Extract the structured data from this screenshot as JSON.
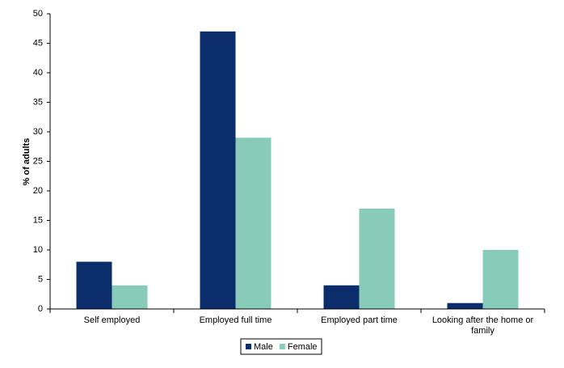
{
  "chart_data": {
    "type": "bar",
    "y_label": "% of adults",
    "categories": [
      "Self employed",
      "Employed full time",
      "Employed part time",
      "Looking after the home or family"
    ],
    "series": [
      {
        "name": "Male",
        "color": "#0b2d6b",
        "values": [
          8,
          47,
          4,
          1
        ]
      },
      {
        "name": "Female",
        "color": "#88cbb9",
        "values": [
          4,
          29,
          17,
          10
        ]
      }
    ],
    "ylim": [
      0,
      50
    ],
    "yticks": [
      0,
      5,
      10,
      15,
      20,
      25,
      30,
      35,
      40,
      45,
      50
    ],
    "grid": false
  }
}
